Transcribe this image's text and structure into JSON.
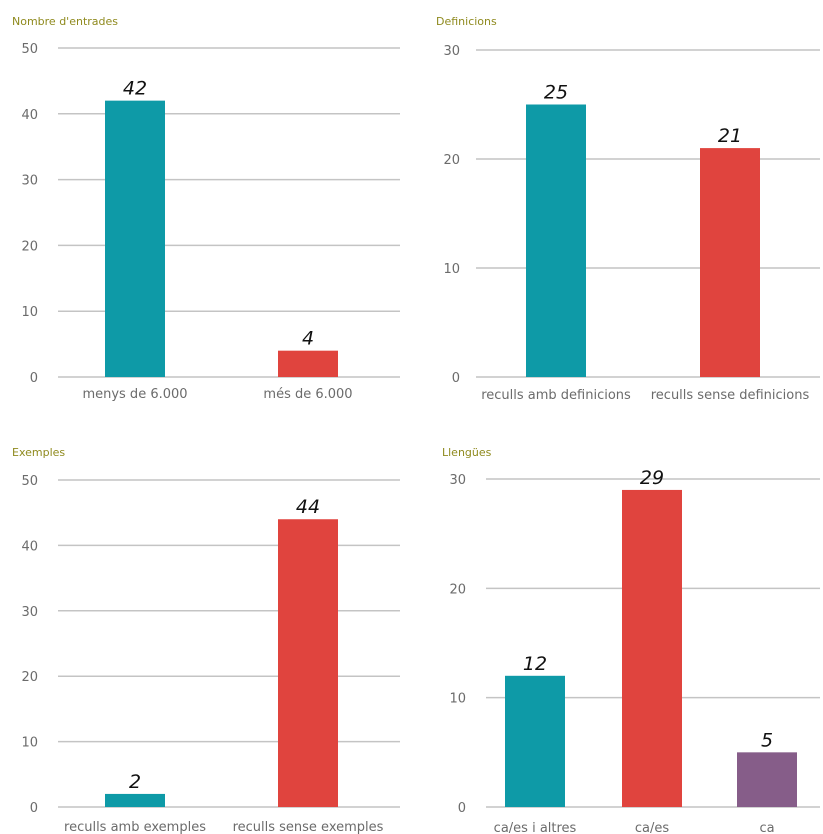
{
  "chart_data": [
    {
      "type": "bar",
      "title": "Nombre d'entrades",
      "categories": [
        "menys de 6.000",
        "més de 6.000"
      ],
      "values": [
        42,
        4
      ],
      "value_labels": [
        "42",
        "4"
      ],
      "colors": [
        "#0e9aa7",
        "#e0443e"
      ],
      "ylim": [
        0,
        50
      ],
      "yticks": [
        0,
        10,
        20,
        30,
        40,
        50
      ],
      "grid": true,
      "xlabel": "",
      "ylabel": ""
    },
    {
      "type": "bar",
      "title": "Definicions",
      "categories": [
        "reculls amb definicions",
        "reculls sense definicions"
      ],
      "values": [
        25,
        21
      ],
      "value_labels": [
        "25",
        "21"
      ],
      "colors": [
        "#0e9aa7",
        "#e0443e"
      ],
      "ylim": [
        0,
        30
      ],
      "yticks": [
        0,
        10,
        20,
        30
      ],
      "grid": true,
      "xlabel": "",
      "ylabel": ""
    },
    {
      "type": "bar",
      "title": "Exemples",
      "categories": [
        "reculls amb exemples",
        "reculls sense exemples"
      ],
      "values": [
        2,
        44
      ],
      "value_labels": [
        "2",
        "44"
      ],
      "colors": [
        "#0e9aa7",
        "#e0443e"
      ],
      "ylim": [
        0,
        50
      ],
      "yticks": [
        0,
        10,
        20,
        30,
        40,
        50
      ],
      "grid": true,
      "xlabel": "",
      "ylabel": ""
    },
    {
      "type": "bar",
      "title": "Llengües",
      "categories": [
        "ca/es i altres",
        "ca/es",
        "ca"
      ],
      "values": [
        12,
        29,
        5
      ],
      "value_labels": [
        "12",
        "29",
        "5"
      ],
      "colors": [
        "#0e9aa7",
        "#e0443e",
        "#865d89"
      ],
      "ylim": [
        0,
        30
      ],
      "yticks": [
        0,
        10,
        20,
        30
      ],
      "grid": true,
      "xlabel": "",
      "ylabel": ""
    }
  ]
}
